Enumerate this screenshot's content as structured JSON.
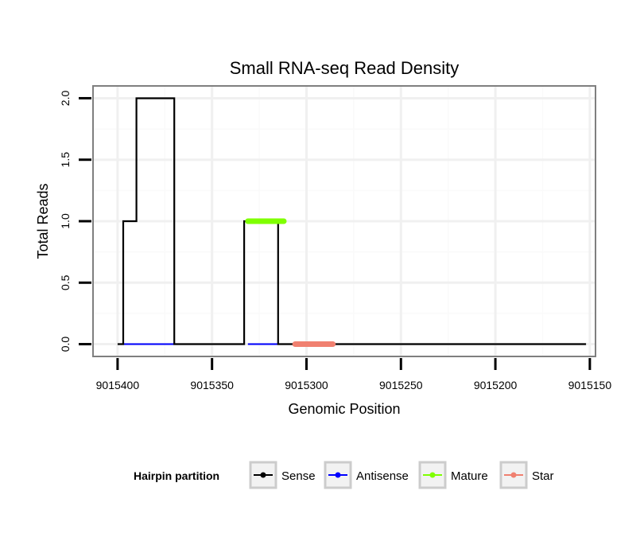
{
  "chart_data": {
    "type": "line",
    "title": "Small RNA-seq Read Density",
    "xlabel": "Genomic Position",
    "ylabel": "Total Reads",
    "x_reversed": true,
    "xlim": [
      9015413,
      9015147
    ],
    "ylim": [
      -0.1,
      2.1
    ],
    "x_ticks": [
      9015400,
      9015350,
      9015300,
      9015250,
      9015200,
      9015150
    ],
    "x_tick_labels": [
      "9015400",
      "9015350",
      "9015300",
      "9015250",
      "9015200",
      "9015150"
    ],
    "y_ticks": [
      0.0,
      0.5,
      1.0,
      1.5,
      2.0
    ],
    "y_tick_labels": [
      "0.0",
      "0.5",
      "1.0",
      "1.5",
      "2.0"
    ],
    "grid": true,
    "legend": {
      "title": "Hairpin partition",
      "placement": "bottom",
      "entries": [
        "Sense",
        "Antisense",
        "Mature",
        "Star"
      ]
    },
    "series": [
      {
        "name": "Sense",
        "color": "#000000",
        "x": [
          9015400,
          9015397,
          9015397,
          9015390,
          9015390,
          9015389,
          9015389,
          9015372,
          9015372,
          9015370,
          9015370,
          9015333,
          9015333,
          9015331,
          9015331,
          9015315,
          9015315,
          9015313,
          9015313,
          9015152
        ],
        "values": [
          0,
          0,
          1,
          1,
          2,
          2,
          2,
          2,
          2,
          2,
          0,
          0,
          1,
          1,
          1,
          1,
          0,
          0,
          0,
          0
        ]
      },
      {
        "name": "Antisense",
        "color": "#0000ff",
        "x": [
          9015397,
          9015370,
          9015370,
          9015333,
          9015331,
          9015315
        ],
        "values": [
          0,
          0,
          null,
          null,
          0,
          0
        ]
      },
      {
        "name": "Mature",
        "color": "#7fff00",
        "x": [
          9015331,
          9015312
        ],
        "values": [
          1,
          1
        ]
      },
      {
        "name": "Star",
        "color": "#f08070",
        "x": [
          9015306,
          9015286
        ],
        "values": [
          0,
          0
        ]
      }
    ]
  }
}
